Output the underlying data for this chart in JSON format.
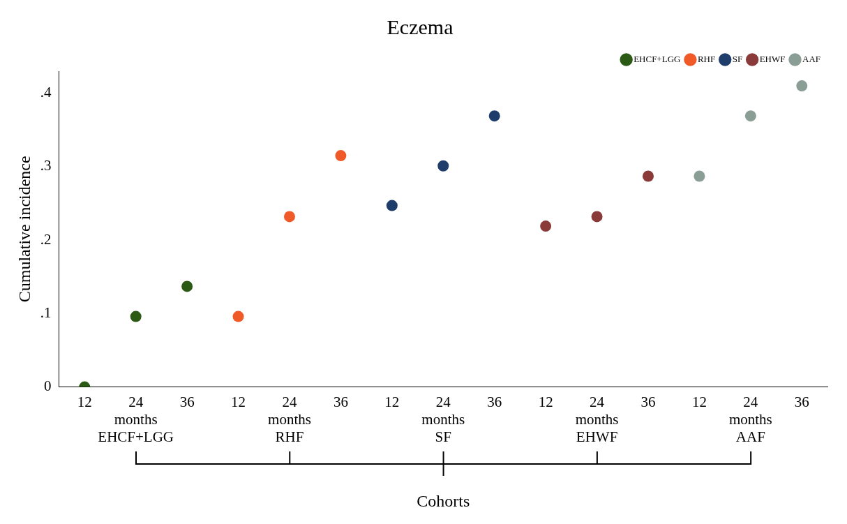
{
  "chart_data": {
    "type": "scatter",
    "title": "Eczema",
    "ylabel": "Cumulative incidence",
    "xlabel": "Cohorts",
    "categories": [
      "12",
      "24\nmonths\nEHCF+LGG",
      "36",
      "12",
      "24\nmonths\nRHF",
      "36",
      "12",
      "24\nmonths\nSF",
      "36",
      "12",
      "24\nmonths\nEHWF",
      "36",
      "12",
      "24\nmonths\nAAF",
      "36"
    ],
    "series": [
      {
        "name": "EHCF+LGG",
        "color": "#2a5a14",
        "values": [
          0,
          0.096,
          0.137,
          null,
          null,
          null,
          null,
          null,
          null,
          null,
          null,
          null,
          null,
          null,
          null
        ]
      },
      {
        "name": "RHF",
        "color": "#f05a28",
        "values": [
          null,
          null,
          null,
          0.096,
          0.232,
          0.315,
          null,
          null,
          null,
          null,
          null,
          null,
          null,
          null,
          null
        ]
      },
      {
        "name": "SF",
        "color": "#1f3d6b",
        "values": [
          null,
          null,
          null,
          null,
          null,
          null,
          0.247,
          0.301,
          0.369,
          null,
          null,
          null,
          null,
          null,
          null
        ]
      },
      {
        "name": "EHWF",
        "color": "#8b3a3a",
        "values": [
          null,
          null,
          null,
          null,
          null,
          null,
          null,
          null,
          null,
          0.219,
          0.232,
          0.287,
          null,
          null,
          null
        ]
      },
      {
        "name": "AAF",
        "color": "#8a9e96",
        "values": [
          null,
          null,
          null,
          null,
          null,
          null,
          null,
          null,
          null,
          null,
          null,
          null,
          0.287,
          0.369,
          0.41
        ]
      }
    ],
    "ylim": [
      0,
      0.43
    ],
    "yticks": [
      0,
      {
        "value": 0.1,
        "label": ".1"
      },
      {
        "value": 0.2,
        "label": ".2"
      },
      {
        "value": 0.3,
        "label": ".3"
      },
      {
        "value": 0.4,
        "label": ".4"
      }
    ],
    "grid": false,
    "legend": "top right",
    "marker": "circle"
  }
}
